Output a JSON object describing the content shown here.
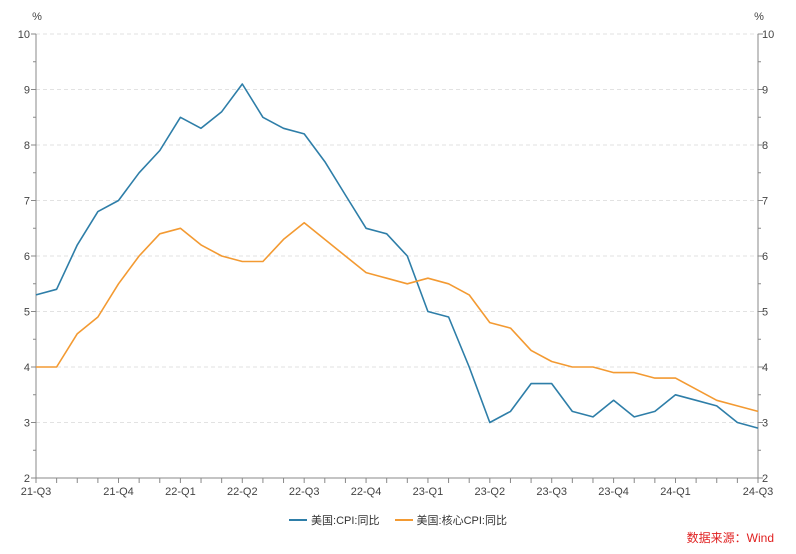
{
  "chart_data": {
    "type": "line",
    "title": "",
    "ylabel_left": "%",
    "ylabel_right": "%",
    "ylim": [
      2,
      10
    ],
    "yticks": [
      2,
      3,
      4,
      5,
      6,
      7,
      8,
      9,
      10
    ],
    "grid": true,
    "x": [
      "2021-08",
      "2021-09",
      "2021-10",
      "2021-11",
      "2021-12",
      "2022-01",
      "2022-02",
      "2022-03",
      "2022-04",
      "2022-05",
      "2022-06",
      "2022-07",
      "2022-08",
      "2022-09",
      "2022-10",
      "2022-11",
      "2022-12",
      "2023-01",
      "2023-02",
      "2023-03",
      "2023-04",
      "2023-05",
      "2023-06",
      "2023-07",
      "2023-08",
      "2023-09",
      "2023-10",
      "2023-11",
      "2023-12",
      "2024-01",
      "2024-02",
      "2024-03",
      "2024-04",
      "2024-05",
      "2024-06",
      "2024-07"
    ],
    "xtick_labels": [
      {
        "index": 0,
        "label": "21-Q3"
      },
      {
        "index": 4,
        "label": "21-Q4"
      },
      {
        "index": 7,
        "label": "22-Q1"
      },
      {
        "index": 10,
        "label": "22-Q2"
      },
      {
        "index": 13,
        "label": "22-Q3"
      },
      {
        "index": 16,
        "label": "22-Q4"
      },
      {
        "index": 19,
        "label": "23-Q1"
      },
      {
        "index": 22,
        "label": "23-Q2"
      },
      {
        "index": 25,
        "label": "23-Q3"
      },
      {
        "index": 28,
        "label": "23-Q4"
      },
      {
        "index": 31,
        "label": "24-Q1"
      },
      {
        "index": 35,
        "label": "24-Q3"
      }
    ],
    "series": [
      {
        "name": "美国:CPI:同比",
        "color": "#2e7ea8",
        "values": [
          5.3,
          5.4,
          6.2,
          6.8,
          7.0,
          7.5,
          7.9,
          8.5,
          8.3,
          8.6,
          9.1,
          8.5,
          8.3,
          8.2,
          7.7,
          7.1,
          6.5,
          6.4,
          6.0,
          5.0,
          4.9,
          4.0,
          3.0,
          3.2,
          3.7,
          3.7,
          3.2,
          3.1,
          3.4,
          3.1,
          3.2,
          3.5,
          3.4,
          3.3,
          3.0,
          2.9
        ]
      },
      {
        "name": "美国:核心CPI:同比",
        "color": "#f39a32",
        "values": [
          4.0,
          4.0,
          4.6,
          4.9,
          5.5,
          6.0,
          6.4,
          6.5,
          6.2,
          6.0,
          5.9,
          5.9,
          6.3,
          6.6,
          6.3,
          6.0,
          5.7,
          5.6,
          5.5,
          5.6,
          5.5,
          5.3,
          4.8,
          4.7,
          4.3,
          4.1,
          4.0,
          4.0,
          3.9,
          3.9,
          3.8,
          3.8,
          3.6,
          3.4,
          3.3,
          3.2
        ]
      }
    ],
    "legend": "bottom-center"
  },
  "source": "数据来源：Wind"
}
